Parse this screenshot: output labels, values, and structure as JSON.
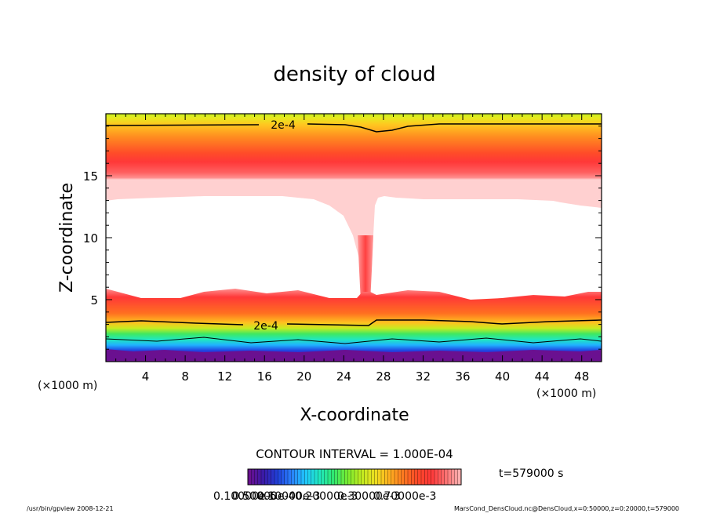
{
  "chart_data": {
    "type": "heatmap",
    "title": "density of cloud",
    "xlabel": "X-coordinate",
    "ylabel": "Z-coordinate",
    "x_unit_left": "(×1000 m)",
    "x_unit_right": "(×1000 m)",
    "xlim": [
      0,
      50
    ],
    "ylim": [
      0,
      20
    ],
    "x_ticks": [
      4,
      8,
      12,
      16,
      20,
      24,
      28,
      32,
      36,
      40,
      44,
      48
    ],
    "y_ticks": [
      5,
      10,
      15
    ],
    "contour_interval": "CONTOUR INTERVAL = 1.000E-04",
    "contour_labels": [
      "2e-4",
      "2e-4"
    ],
    "time_label": "t=579000 s",
    "colorbar_labels": [
      "0.10000e-6",
      "0.50000e-4",
      "0.10000e-3",
      "0.20000e-3",
      "0.30000e-3",
      "0.70000e-3"
    ],
    "colorbar_colors": [
      "#6a1090",
      "#3a1aa8",
      "#2040d8",
      "#2a80ff",
      "#20c8ff",
      "#20e8c0",
      "#30e870",
      "#78ec30",
      "#c0ec20",
      "#f0e020",
      "#ffb020",
      "#ff7820",
      "#ff4828",
      "#ff3838",
      "#ff7070",
      "#ffb0b0"
    ],
    "footer_left": "/usr/bin/gpview   2008-12-21",
    "footer_right": "MarsCond_DensCloud.nc@DensCloud,x=0:50000,z=0:20000,t=579000"
  }
}
